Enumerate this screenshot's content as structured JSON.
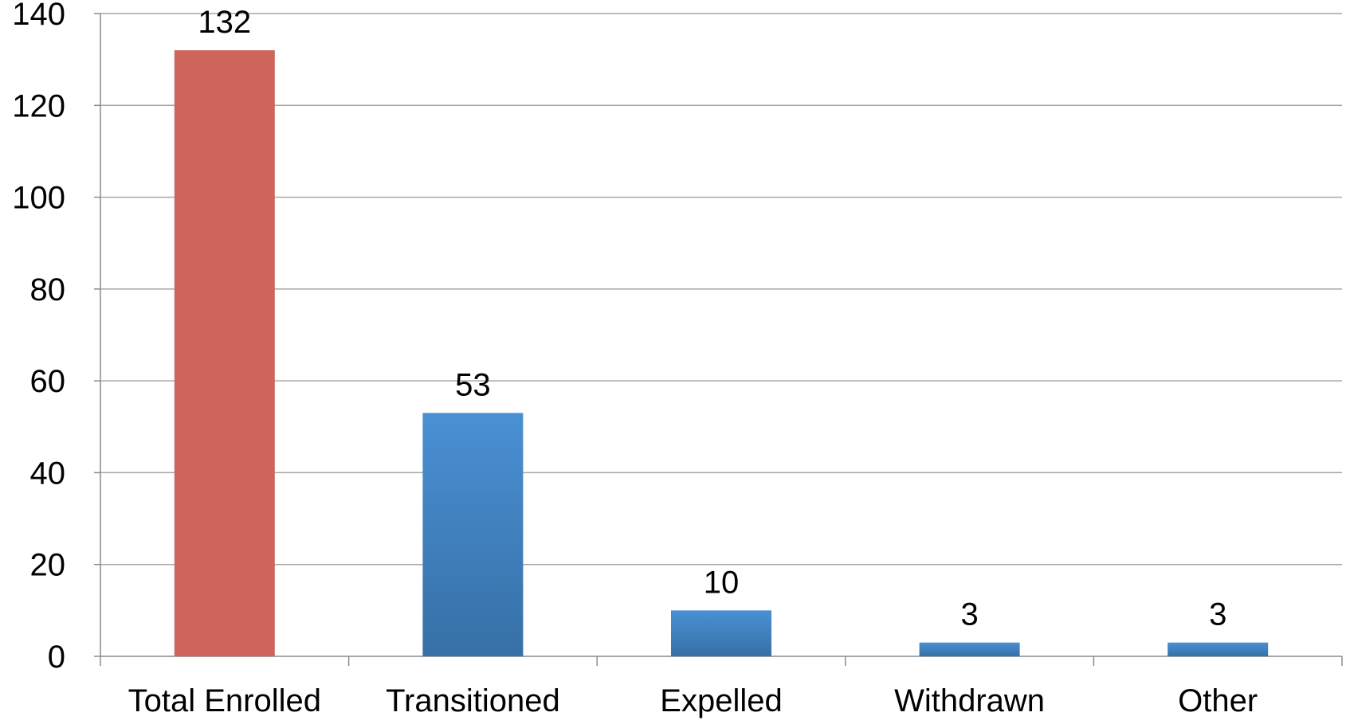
{
  "chart_data": {
    "type": "bar",
    "categories": [
      "Total Enrolled",
      "Transitioned",
      "Expelled",
      "Withdrawn",
      "Other"
    ],
    "values": [
      132,
      53,
      10,
      3,
      3
    ],
    "data_labels": [
      "132",
      "53",
      "10",
      "3",
      "3"
    ],
    "ylim": [
      0,
      140
    ],
    "yticks": [
      0,
      20,
      40,
      60,
      80,
      100,
      120,
      140
    ],
    "ytick_labels": [
      "0",
      "20",
      "40",
      "60",
      "80",
      "100",
      "120",
      "140"
    ],
    "title": "",
    "xlabel": "",
    "ylabel": "",
    "grid": true,
    "legend": false,
    "colors": {
      "highlight": "#CD655C",
      "highlight_category": "Total Enrolled",
      "default_top": "#4A90D4",
      "default_bottom": "#3670A6",
      "gridline": "#a6a6a6",
      "axis": "#8c8c8c"
    }
  }
}
